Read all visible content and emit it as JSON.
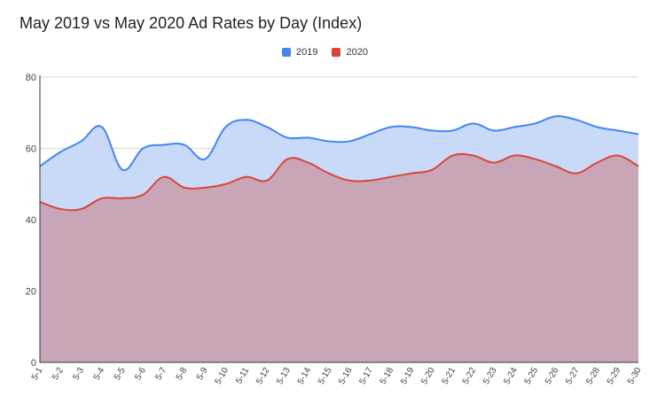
{
  "chart_data": {
    "type": "area",
    "title": "May 2019 vs May 2020 Ad Rates by Day (Index)",
    "xlabel": "",
    "ylabel": "",
    "ylim": [
      0,
      80
    ],
    "yticks": [
      0,
      20,
      40,
      60,
      80
    ],
    "grid": true,
    "legend_position": "top",
    "categories": [
      "5-1",
      "5-2",
      "5-3",
      "5-4",
      "5-5",
      "5-6",
      "5-7",
      "5-8",
      "5-9",
      "5-10",
      "5-11",
      "5-12",
      "5-13",
      "5-14",
      "5-15",
      "5-16",
      "5-17",
      "5-18",
      "5-19",
      "5-20",
      "5-21",
      "5-22",
      "5-23",
      "5-24",
      "5-25",
      "5-26",
      "5-27",
      "5-28",
      "5-29",
      "5-30"
    ],
    "series": [
      {
        "name": "2019",
        "color": "#4285f4",
        "fill": "#c9daf8",
        "values": [
          55,
          59,
          62,
          66,
          54,
          60,
          61,
          61,
          57,
          66,
          68,
          66,
          63,
          63,
          62,
          62,
          64,
          66,
          66,
          65,
          65,
          67,
          65,
          66,
          67,
          69,
          68,
          66,
          65,
          64
        ]
      },
      {
        "name": "2020",
        "color": "#db4437",
        "fill": "#c9a3b3",
        "values": [
          45,
          43,
          43,
          46,
          46,
          47,
          52,
          49,
          49,
          50,
          52,
          51,
          57,
          56,
          53,
          51,
          51,
          52,
          53,
          54,
          58,
          58,
          56,
          58,
          57,
          55,
          53,
          56,
          58,
          55
        ]
      }
    ]
  }
}
